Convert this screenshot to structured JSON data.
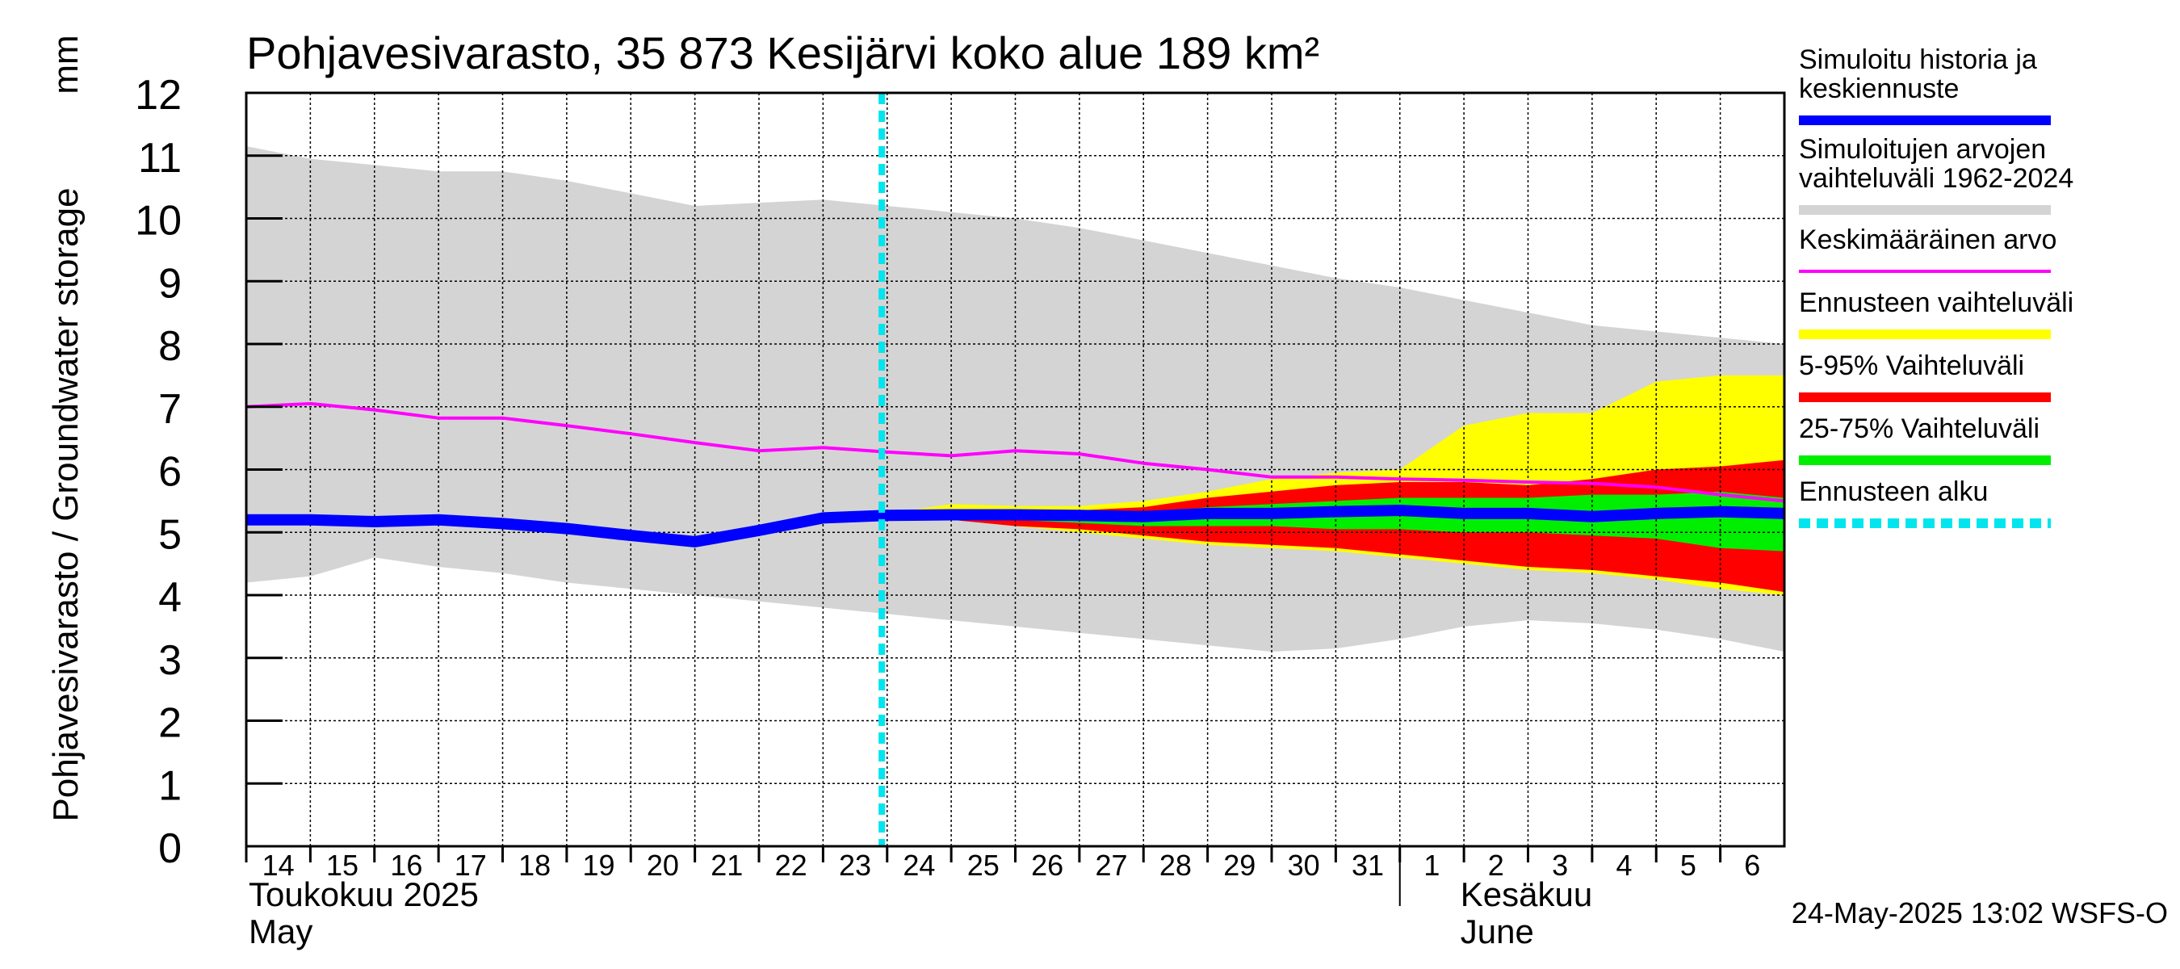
{
  "chart_data": {
    "type": "area",
    "title": "Pohjavesivarasto, 35 873 Kesijärvi koko alue 189 km²",
    "ylabel": "Pohjavesivarasto / Groundwater storage",
    "yunit": "mm",
    "ylim": [
      0,
      12
    ],
    "yticks": [
      0,
      1,
      2,
      3,
      4,
      5,
      6,
      7,
      8,
      9,
      10,
      11,
      12
    ],
    "x_range": [
      "2025-05-14",
      "2025-06-07"
    ],
    "x_tick_labels": [
      "14",
      "15",
      "16",
      "17",
      "18",
      "19",
      "20",
      "21",
      "22",
      "23",
      "24",
      "25",
      "26",
      "27",
      "28",
      "29",
      "30",
      "31",
      "1",
      "2",
      "3",
      "4",
      "5",
      "6"
    ],
    "month_labels": [
      {
        "fi": "Toukokuu  2025",
        "en": "May"
      },
      {
        "fi": "Kesäkuu",
        "en": "June"
      }
    ],
    "grid": true,
    "legend_position": "right",
    "forecast_start": "2025-05-23T22:00",
    "footer": "24-May-2025 13:02 WSFS-O",
    "x": [
      "2025-05-14",
      "2025-05-15",
      "2025-05-16",
      "2025-05-17",
      "2025-05-18",
      "2025-05-19",
      "2025-05-20",
      "2025-05-21",
      "2025-05-22",
      "2025-05-23",
      "2025-05-24",
      "2025-05-25",
      "2025-05-26",
      "2025-05-27",
      "2025-05-28",
      "2025-05-29",
      "2025-05-30",
      "2025-05-31",
      "2025-06-01",
      "2025-06-02",
      "2025-06-03",
      "2025-06-04",
      "2025-06-05",
      "2025-06-06",
      "2025-06-07"
    ],
    "series": [
      {
        "name": "Simuloitujen arvojen vaihteluväli 1962-2024",
        "kind": "band",
        "color": "#d4d4d4",
        "upper": [
          11.15,
          10.95,
          10.85,
          10.75,
          10.75,
          10.6,
          10.4,
          10.2,
          10.25,
          10.3,
          10.2,
          10.1,
          10.0,
          9.85,
          9.65,
          9.45,
          9.25,
          9.05,
          8.9,
          8.7,
          8.5,
          8.3,
          8.2,
          8.1,
          8.0
        ],
        "lower": [
          4.2,
          4.3,
          4.6,
          4.45,
          4.35,
          4.2,
          4.1,
          4.0,
          3.9,
          3.8,
          3.7,
          3.6,
          3.5,
          3.4,
          3.3,
          3.2,
          3.1,
          3.15,
          3.3,
          3.5,
          3.6,
          3.55,
          3.45,
          3.3,
          3.1
        ]
      },
      {
        "name": "Ennusteen vaihteluväli",
        "kind": "band",
        "color": "#ffff00",
        "x": [
          "2025-05-24",
          "2025-05-25",
          "2025-05-26",
          "2025-05-27",
          "2025-05-28",
          "2025-05-29",
          "2025-05-30",
          "2025-05-31",
          "2025-06-01",
          "2025-06-02",
          "2025-06-03",
          "2025-06-04",
          "2025-06-05",
          "2025-06-06",
          "2025-06-07"
        ],
        "upper": [
          5.3,
          5.45,
          5.42,
          5.42,
          5.5,
          5.65,
          5.85,
          5.95,
          6.0,
          6.7,
          6.9,
          6.9,
          7.4,
          7.5,
          7.5
        ],
        "lower": [
          5.3,
          5.2,
          5.1,
          5.0,
          4.9,
          4.8,
          4.75,
          4.7,
          4.6,
          4.5,
          4.4,
          4.35,
          4.25,
          4.1,
          4.0
        ]
      },
      {
        "name": "5-95% Vaihteluväli",
        "kind": "band",
        "color": "#ff0000",
        "x": [
          "2025-05-24",
          "2025-05-25",
          "2025-05-26",
          "2025-05-27",
          "2025-05-28",
          "2025-05-29",
          "2025-05-30",
          "2025-05-31",
          "2025-06-01",
          "2025-06-02",
          "2025-06-03",
          "2025-06-04",
          "2025-06-05",
          "2025-06-06",
          "2025-06-07"
        ],
        "upper": [
          5.3,
          5.35,
          5.35,
          5.35,
          5.4,
          5.55,
          5.65,
          5.75,
          5.8,
          5.8,
          5.75,
          5.85,
          6.0,
          6.05,
          6.15
        ],
        "lower": [
          5.3,
          5.2,
          5.1,
          5.05,
          4.95,
          4.85,
          4.8,
          4.75,
          4.65,
          4.55,
          4.45,
          4.4,
          4.3,
          4.2,
          4.05
        ]
      },
      {
        "name": "25-75% Vaihteluväli",
        "kind": "band",
        "color": "#00ee00",
        "x": [
          "2025-05-24",
          "2025-05-25",
          "2025-05-26",
          "2025-05-27",
          "2025-05-28",
          "2025-05-29",
          "2025-05-30",
          "2025-05-31",
          "2025-06-01",
          "2025-06-02",
          "2025-06-03",
          "2025-06-04",
          "2025-06-05",
          "2025-06-06",
          "2025-06-07"
        ],
        "upper": [
          5.3,
          5.3,
          5.3,
          5.3,
          5.3,
          5.4,
          5.45,
          5.5,
          5.55,
          5.55,
          5.55,
          5.6,
          5.6,
          5.65,
          5.55
        ],
        "lower": [
          5.3,
          5.25,
          5.2,
          5.15,
          5.1,
          5.1,
          5.1,
          5.05,
          5.05,
          5.0,
          5.0,
          4.95,
          4.9,
          4.75,
          4.7
        ]
      },
      {
        "name": "Keskimääräinen arvo",
        "kind": "line",
        "color": "#ff00ff",
        "values": [
          7.0,
          7.05,
          6.95,
          6.82,
          6.82,
          6.7,
          6.57,
          6.43,
          6.3,
          6.35,
          6.28,
          6.22,
          6.3,
          6.25,
          6.1,
          6.0,
          5.88,
          5.88,
          5.85,
          5.83,
          5.8,
          5.78,
          5.72,
          5.6,
          5.5
        ]
      },
      {
        "name": "Simuloitu historia ja keskiennuste",
        "kind": "line",
        "color": "#0000ff",
        "values": [
          5.2,
          5.2,
          5.17,
          5.2,
          5.14,
          5.06,
          4.95,
          4.85,
          5.03,
          5.23,
          5.27,
          5.28,
          5.28,
          5.27,
          5.25,
          5.3,
          5.3,
          5.33,
          5.35,
          5.3,
          5.3,
          5.25,
          5.3,
          5.33,
          5.3
        ]
      }
    ],
    "legend": [
      {
        "label": "Simuloitu historia ja keskiennuste",
        "color": "#0000ff",
        "style": "thick-line"
      },
      {
        "label": "Simuloitujen arvojen vaihteluväli 1962-2024",
        "color": "#d4d4d4",
        "style": "thick-line"
      },
      {
        "label": "Keskimääräinen arvo",
        "color": "#ff00ff",
        "style": "line"
      },
      {
        "label": "Ennusteen vaihteluväli",
        "color": "#ffff00",
        "style": "thick-line"
      },
      {
        "label": "5-95% Vaihteluväli",
        "color": "#ff0000",
        "style": "thick-line"
      },
      {
        "label": "25-75% Vaihteluväli",
        "color": "#00ee00",
        "style": "thick-line"
      },
      {
        "label": "Ennusteen alku",
        "color": "#00e5ee",
        "style": "dashed-line"
      }
    ],
    "legend_lines": [
      [
        "Simuloitu historia ja",
        "keskiennuste"
      ],
      [
        "Simuloitujen arvojen",
        "vaihteluväli 1962-2024"
      ],
      [
        "Keskimääräinen arvo"
      ],
      [
        "Ennusteen vaihteluväli"
      ],
      [
        "5-95% Vaihteluväli"
      ],
      [
        "25-75% Vaihteluväli"
      ],
      [
        "Ennusteen alku"
      ]
    ]
  }
}
